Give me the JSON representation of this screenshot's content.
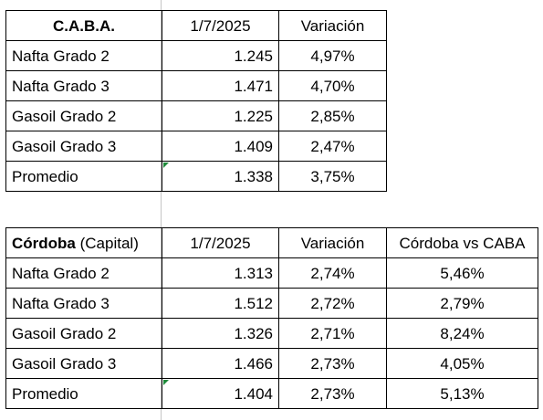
{
  "caba": {
    "header": {
      "region": "C.A.B.A.",
      "date": "1/7/2025",
      "variation": "Variación"
    },
    "rows": [
      {
        "name": "Nafta Grado 2",
        "price": "1.245",
        "variation": "4,97%"
      },
      {
        "name": "Nafta Grado 3",
        "price": "1.471",
        "variation": "4,70%"
      },
      {
        "name": "Gasoil Grado 2",
        "price": "1.225",
        "variation": "2,85%"
      },
      {
        "name": "Gasoil Grado 3",
        "price": "1.409",
        "variation": "2,47%"
      },
      {
        "name": "Promedio",
        "price": "1.338",
        "variation": "3,75%"
      }
    ]
  },
  "cordoba": {
    "header": {
      "region": "Córdoba",
      "region_suffix": " (Capital)",
      "date": "1/7/2025",
      "variation": "Variación",
      "comparison": "Córdoba vs CABA"
    },
    "rows": [
      {
        "name": "Nafta Grado 2",
        "price": "1.313",
        "variation": "2,74%",
        "vs_caba": "5,46%"
      },
      {
        "name": "Nafta Grado 3",
        "price": "1.512",
        "variation": "2,72%",
        "vs_caba": "2,79%"
      },
      {
        "name": "Gasoil Grado 2",
        "price": "1.326",
        "variation": "2,71%",
        "vs_caba": "8,24%"
      },
      {
        "name": "Gasoil Grado 3",
        "price": "1.466",
        "variation": "2,73%",
        "vs_caba": "4,05%"
      },
      {
        "name": "Promedio",
        "price": "1.404",
        "variation": "2,73%",
        "vs_caba": "5,13%"
      }
    ]
  },
  "colors": {
    "border": "#000000",
    "gridline": "#c6c6c6",
    "cell_marker": "#1e8a3a"
  }
}
